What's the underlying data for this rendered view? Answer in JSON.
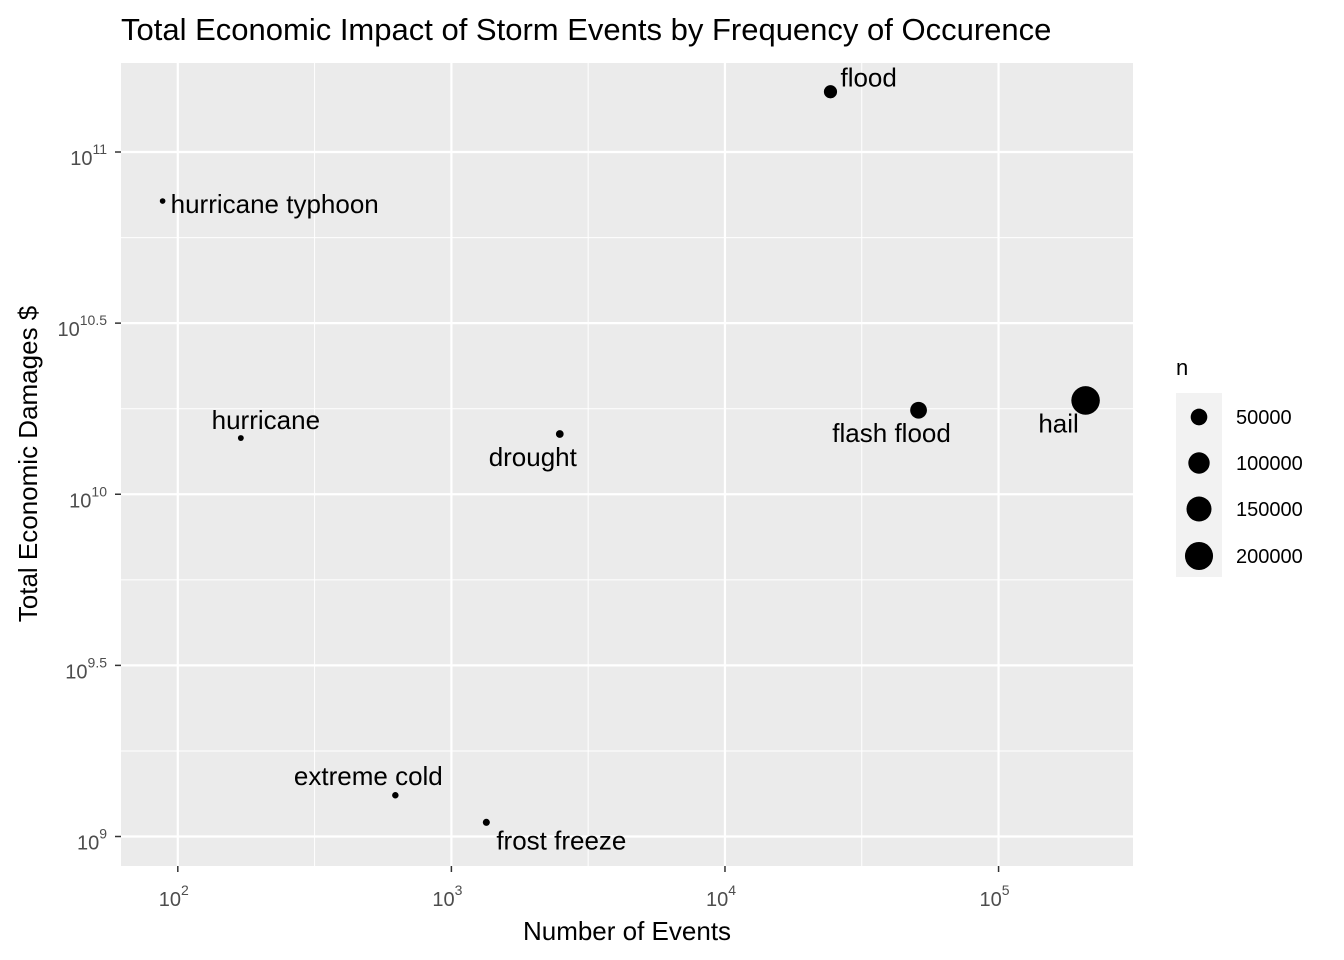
{
  "chart_data": {
    "type": "scatter",
    "title": "Total Economic Impact of Storm Events by Frequency of Occurence",
    "xlabel": "Number of Events",
    "ylabel": "Total Economic Damages $",
    "x_scale": "log10",
    "y_scale": "log10",
    "xlim": [
      62,
      310000
    ],
    "ylim": [
      820000000,
      182000000000
    ],
    "x_ticks": [
      {
        "value": 100,
        "base": "10",
        "exp": "2"
      },
      {
        "value": 1000,
        "base": "10",
        "exp": "3"
      },
      {
        "value": 10000,
        "base": "10",
        "exp": "4"
      },
      {
        "value": 100000,
        "base": "10",
        "exp": "5"
      }
    ],
    "y_ticks": [
      {
        "value": 1000000000,
        "base": "10",
        "exp": "9"
      },
      {
        "value": 3162277660,
        "base": "10",
        "exp": "9.5"
      },
      {
        "value": 10000000000,
        "base": "10",
        "exp": "10"
      },
      {
        "value": 31622776602,
        "base": "10",
        "exp": "10.5"
      },
      {
        "value": 100000000000,
        "base": "10",
        "exp": "11"
      }
    ],
    "grid": true,
    "legend_position": "right",
    "size_legend": {
      "title": "n",
      "entries": [
        {
          "label": "50000",
          "value": 50000
        },
        {
          "label": "100000",
          "value": 100000
        },
        {
          "label": "150000",
          "value": 150000
        },
        {
          "label": "200000",
          "value": 200000
        }
      ]
    },
    "points": [
      {
        "label": "flood",
        "x": 24300,
        "y": 150000000000,
        "n": 24300
      },
      {
        "label": "hurricane typhoon",
        "x": 88,
        "y": 71900000000,
        "n": 88
      },
      {
        "label": "hurricane",
        "x": 170,
        "y": 14600000000,
        "n": 170
      },
      {
        "label": "drought",
        "x": 2490,
        "y": 15000000000,
        "n": 2490
      },
      {
        "label": "flash flood",
        "x": 51000,
        "y": 17600000000,
        "n": 51000
      },
      {
        "label": "hail",
        "x": 208000,
        "y": 18800000000,
        "n": 208000
      },
      {
        "label": "extreme cold",
        "x": 624,
        "y": 1320000000,
        "n": 624
      },
      {
        "label": "frost freeze",
        "x": 1342,
        "y": 1100000000,
        "n": 1342
      }
    ]
  }
}
